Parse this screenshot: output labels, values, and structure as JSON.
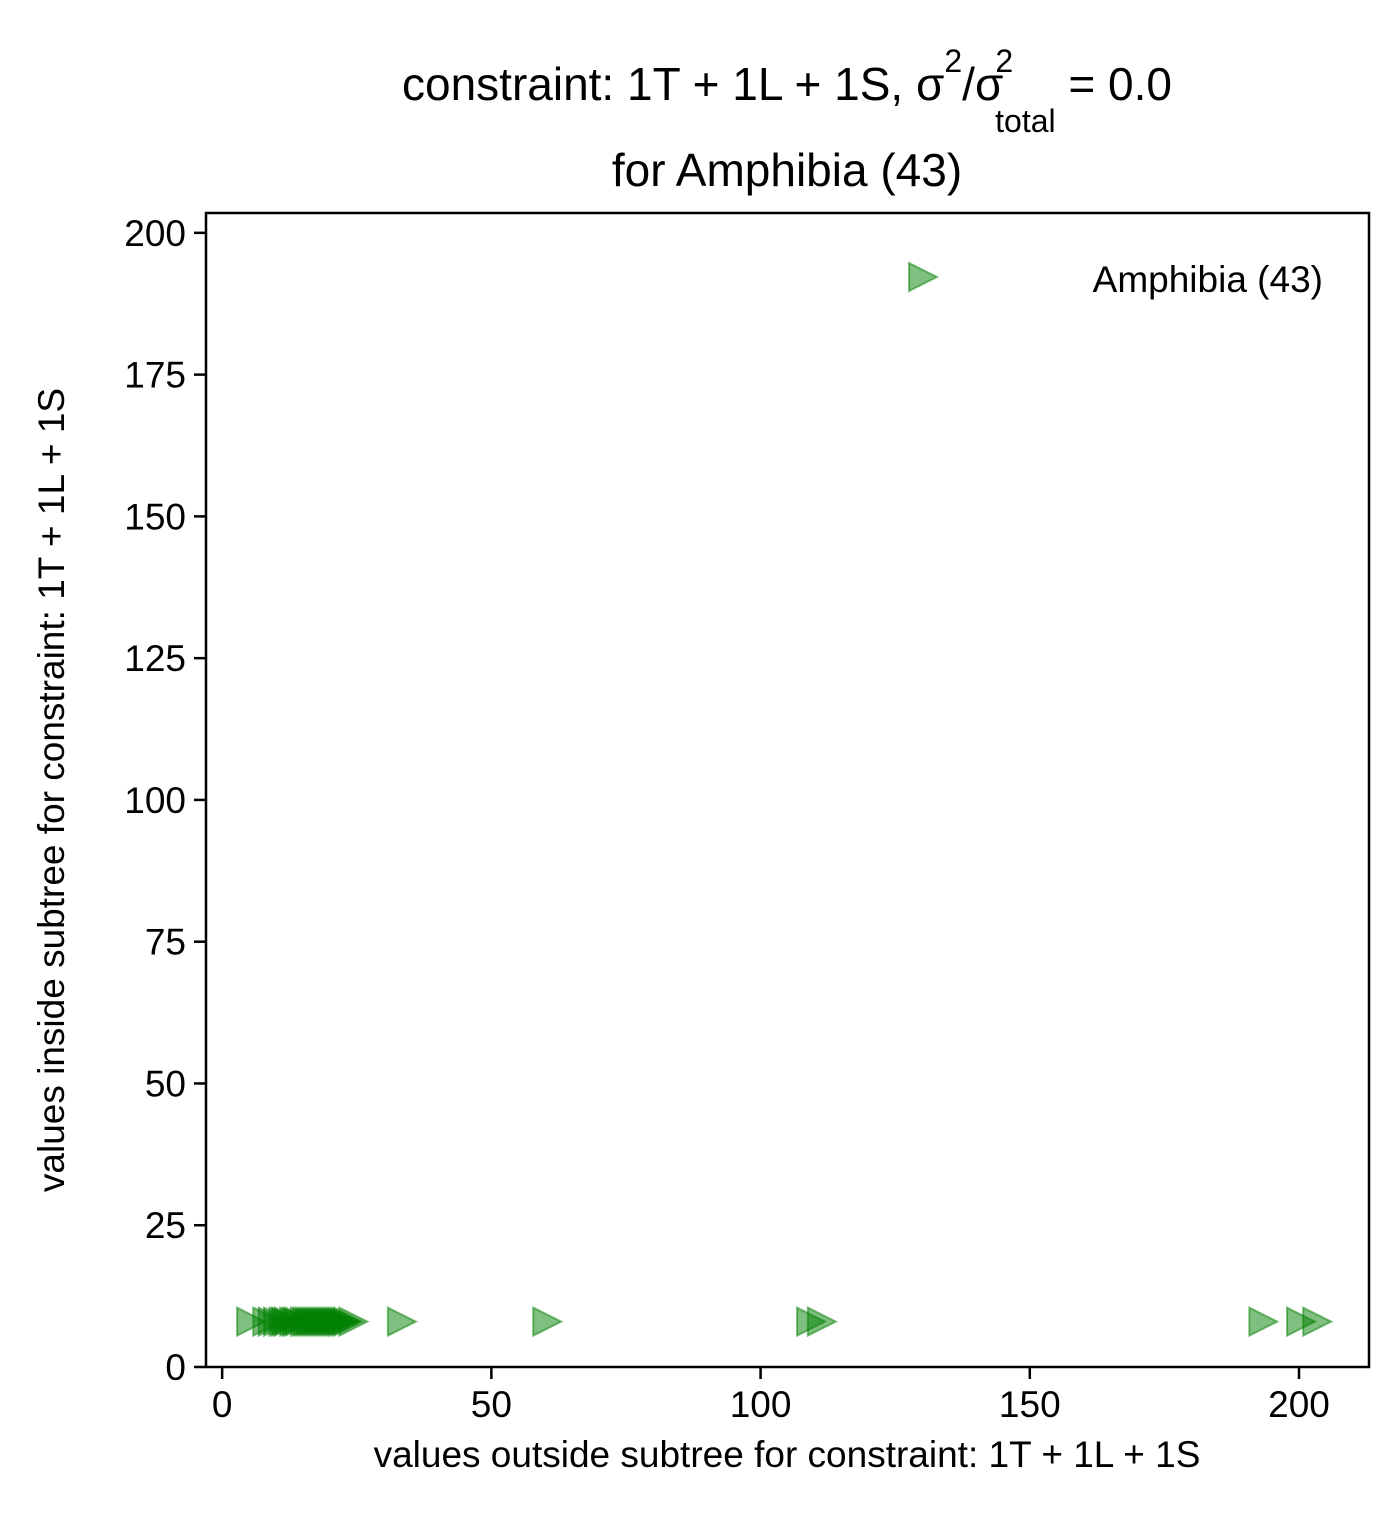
{
  "chart_data": {
    "type": "scatter",
    "title": {
      "prefix": "constraint: 1T + 1L + 1S, σ",
      "sup1": "2",
      "slash": "/σ",
      "sub": "total",
      "sup2": "2",
      "suffix": " =  0.0",
      "line2": "for Amphibia (43)"
    },
    "xlabel": "values outside subtree for constraint: 1T + 1L + 1S",
    "ylabel": "values inside subtree for constraint: 1T + 1L + 1S",
    "xlim": [
      -3,
      213
    ],
    "ylim": [
      0,
      203.5
    ],
    "xticks": [
      0,
      50,
      100,
      150,
      200
    ],
    "yticks": [
      0,
      25,
      50,
      75,
      100,
      125,
      150,
      175,
      200
    ],
    "grid": false,
    "legend": {
      "position": "top-right"
    },
    "series": [
      {
        "name": "Amphibia (43)",
        "marker": "triangle-right",
        "color": "#008000",
        "alpha": 0.5,
        "points": [
          [
            5,
            8
          ],
          [
            8,
            8
          ],
          [
            9,
            8
          ],
          [
            10,
            8
          ],
          [
            11,
            8
          ],
          [
            11.5,
            8
          ],
          [
            12,
            8
          ],
          [
            13,
            8
          ],
          [
            13.5,
            8
          ],
          [
            14,
            8
          ],
          [
            15,
            8
          ],
          [
            15.5,
            8
          ],
          [
            16,
            8
          ],
          [
            16.5,
            8
          ],
          [
            17,
            8
          ],
          [
            17.5,
            8
          ],
          [
            18,
            8
          ],
          [
            18.5,
            8
          ],
          [
            19,
            8
          ],
          [
            19.5,
            8
          ],
          [
            20,
            8
          ],
          [
            20.5,
            8
          ],
          [
            21,
            8
          ],
          [
            21.5,
            8
          ],
          [
            22,
            8
          ],
          [
            22.5,
            8
          ],
          [
            23,
            8
          ],
          [
            24,
            8
          ],
          [
            33,
            8
          ],
          [
            60,
            8
          ],
          [
            109,
            8
          ],
          [
            111,
            8
          ],
          [
            193,
            8
          ],
          [
            200,
            8
          ],
          [
            203,
            8
          ]
        ]
      }
    ]
  }
}
